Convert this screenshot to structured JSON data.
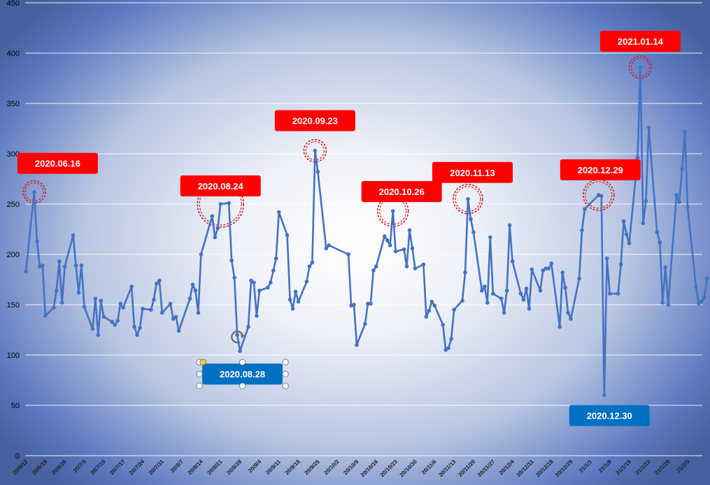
{
  "chart_data": {
    "type": "line",
    "ylim": [
      0,
      450
    ],
    "yticks": [
      0,
      50,
      100,
      150,
      200,
      250,
      300,
      350,
      400,
      450
    ],
    "grid": true,
    "line_color": "#4472C4",
    "xtick_labels": [
      "20/6/12",
      "20/6/19",
      "20/6/26",
      "20/7/3",
      "20/7/10",
      "20/7/17",
      "20/7/24",
      "20/7/31",
      "20/8/7",
      "20/8/14",
      "20/8/21",
      "20/8/28",
      "20/9/4",
      "20/9/11",
      "20/9/18",
      "20/9/25",
      "20/10/2",
      "20/10/9",
      "20/10/16",
      "20/10/23",
      "20/10/30",
      "20/11/6",
      "20/11/13",
      "20/11/20",
      "20/11/27",
      "20/12/4",
      "20/12/11",
      "20/12/18",
      "20/12/25",
      "21/1/1",
      "21/1/8",
      "21/1/15",
      "21/1/22",
      "21/1/29",
      "21/2/5"
    ],
    "series": [
      {
        "points": [
          [
            "2020-06-12",
            183
          ],
          [
            "2020-06-15",
            262
          ],
          [
            "2020-06-16",
            213
          ],
          [
            "2020-06-17",
            188
          ],
          [
            "2020-06-18",
            189
          ],
          [
            "2020-06-19",
            139
          ],
          [
            "2020-06-22",
            147
          ],
          [
            "2020-06-23",
            164
          ],
          [
            "2020-06-24",
            193
          ],
          [
            "2020-06-25",
            152
          ],
          [
            "2020-06-26",
            188
          ],
          [
            "2020-06-29",
            219
          ],
          [
            "2020-06-30",
            189
          ],
          [
            "2020-07-01",
            162
          ],
          [
            "2020-07-02",
            189
          ],
          [
            "2020-07-03",
            148
          ],
          [
            "2020-07-06",
            126
          ],
          [
            "2020-07-07",
            156
          ],
          [
            "2020-07-08",
            120
          ],
          [
            "2020-07-09",
            154
          ],
          [
            "2020-07-10",
            138
          ],
          [
            "2020-07-13",
            133
          ],
          [
            "2020-07-14",
            130
          ],
          [
            "2020-07-15",
            134
          ],
          [
            "2020-07-16",
            151
          ],
          [
            "2020-07-17",
            147
          ],
          [
            "2020-07-20",
            168
          ],
          [
            "2020-07-21",
            128
          ],
          [
            "2020-07-22",
            120
          ],
          [
            "2020-07-23",
            127
          ],
          [
            "2020-07-24",
            146
          ],
          [
            "2020-07-27",
            145
          ],
          [
            "2020-07-28",
            155
          ],
          [
            "2020-07-29",
            171
          ],
          [
            "2020-07-30",
            174
          ],
          [
            "2020-07-31",
            142
          ],
          [
            "2020-08-03",
            151
          ],
          [
            "2020-08-04",
            136
          ],
          [
            "2020-08-05",
            138
          ],
          [
            "2020-08-06",
            124
          ],
          [
            "2020-08-10",
            156
          ],
          [
            "2020-08-11",
            170
          ],
          [
            "2020-08-12",
            164
          ],
          [
            "2020-08-13",
            142
          ],
          [
            "2020-08-14",
            200
          ],
          [
            "2020-08-18",
            238
          ],
          [
            "2020-08-19",
            217
          ],
          [
            "2020-08-20",
            226
          ],
          [
            "2020-08-21",
            250
          ],
          [
            "2020-08-24",
            251
          ],
          [
            "2020-08-25",
            194
          ],
          [
            "2020-08-26",
            177
          ],
          [
            "2020-08-27",
            120
          ],
          [
            "2020-08-28",
            104
          ],
          [
            "2020-08-31",
            128
          ],
          [
            "2020-09-01",
            174
          ],
          [
            "2020-09-02",
            172
          ],
          [
            "2020-09-03",
            139
          ],
          [
            "2020-09-04",
            164
          ],
          [
            "2020-09-07",
            167
          ],
          [
            "2020-09-08",
            172
          ],
          [
            "2020-09-09",
            184
          ],
          [
            "2020-09-10",
            196
          ],
          [
            "2020-09-11",
            242
          ],
          [
            "2020-09-14",
            219
          ],
          [
            "2020-09-15",
            155
          ],
          [
            "2020-09-16",
            146
          ],
          [
            "2020-09-17",
            163
          ],
          [
            "2020-09-18",
            153
          ],
          [
            "2020-09-21",
            173
          ],
          [
            "2020-09-22",
            188
          ],
          [
            "2020-09-23",
            192
          ],
          [
            "2020-09-24",
            303
          ],
          [
            "2020-09-25",
            282
          ],
          [
            "2020-09-28",
            206
          ],
          [
            "2020-09-29",
            209
          ],
          [
            "2020-10-06",
            200
          ],
          [
            "2020-10-07",
            149
          ],
          [
            "2020-10-08",
            150
          ],
          [
            "2020-10-09",
            110
          ],
          [
            "2020-10-12",
            131
          ],
          [
            "2020-10-13",
            151
          ],
          [
            "2020-10-14",
            151
          ],
          [
            "2020-10-15",
            184
          ],
          [
            "2020-10-16",
            188
          ],
          [
            "2020-10-19",
            218
          ],
          [
            "2020-10-20",
            214
          ],
          [
            "2020-10-21",
            209
          ],
          [
            "2020-10-22",
            243
          ],
          [
            "2020-10-23",
            203
          ],
          [
            "2020-10-26",
            205
          ],
          [
            "2020-10-27",
            188
          ],
          [
            "2020-10-28",
            224
          ],
          [
            "2020-10-29",
            206
          ],
          [
            "2020-10-30",
            186
          ],
          [
            "2020-11-02",
            190
          ],
          [
            "2020-11-03",
            138
          ],
          [
            "2020-11-04",
            144
          ],
          [
            "2020-11-05",
            153
          ],
          [
            "2020-11-06",
            149
          ],
          [
            "2020-11-09",
            130
          ],
          [
            "2020-11-10",
            105
          ],
          [
            "2020-11-11",
            107
          ],
          [
            "2020-11-12",
            116
          ],
          [
            "2020-11-13",
            145
          ],
          [
            "2020-11-16",
            154
          ],
          [
            "2020-11-17",
            182
          ],
          [
            "2020-11-18",
            255
          ],
          [
            "2020-11-19",
            235
          ],
          [
            "2020-11-20",
            222
          ],
          [
            "2020-11-23",
            164
          ],
          [
            "2020-11-24",
            168
          ],
          [
            "2020-11-25",
            152
          ],
          [
            "2020-11-26",
            217
          ],
          [
            "2020-11-27",
            161
          ],
          [
            "2020-11-30",
            156
          ],
          [
            "2020-12-01",
            142
          ],
          [
            "2020-12-02",
            164
          ],
          [
            "2020-12-03",
            229
          ],
          [
            "2020-12-04",
            193
          ],
          [
            "2020-12-07",
            161
          ],
          [
            "2020-12-08",
            155
          ],
          [
            "2020-12-09",
            166
          ],
          [
            "2020-12-10",
            146
          ],
          [
            "2020-12-11",
            185
          ],
          [
            "2020-12-14",
            164
          ],
          [
            "2020-12-15",
            184
          ],
          [
            "2020-12-16",
            186
          ],
          [
            "2020-12-17",
            186
          ],
          [
            "2020-12-18",
            191
          ],
          [
            "2020-12-21",
            128
          ],
          [
            "2020-12-22",
            182
          ],
          [
            "2020-12-23",
            167
          ],
          [
            "2020-12-24",
            142
          ],
          [
            "2020-12-25",
            136
          ],
          [
            "2020-12-28",
            176
          ],
          [
            "2020-12-29",
            224
          ],
          [
            "2020-12-30",
            245
          ],
          [
            "2021-01-04",
            259
          ],
          [
            "2021-01-05",
            258
          ],
          [
            "2021-01-06",
            60
          ],
          [
            "2021-01-07",
            196
          ],
          [
            "2021-01-08",
            161
          ],
          [
            "2021-01-11",
            161
          ],
          [
            "2021-01-12",
            190
          ],
          [
            "2021-01-13",
            233
          ],
          [
            "2021-01-14",
            220
          ],
          [
            "2021-01-15",
            211
          ],
          [
            "2021-01-18",
            296
          ],
          [
            "2021-01-19",
            386
          ],
          [
            "2021-01-20",
            231
          ],
          [
            "2021-01-21",
            253
          ],
          [
            "2021-01-22",
            326
          ],
          [
            "2021-01-25",
            222
          ],
          [
            "2021-01-26",
            212
          ],
          [
            "2021-01-27",
            152
          ],
          [
            "2021-01-28",
            187
          ],
          [
            "2021-01-29",
            150
          ],
          [
            "2021-02-01",
            259
          ],
          [
            "2021-02-02",
            252
          ],
          [
            "2021-02-03",
            285
          ],
          [
            "2021-02-04",
            322
          ],
          [
            "2021-02-05",
            247
          ],
          [
            "2021-02-08",
            168
          ],
          [
            "2021-02-09",
            151
          ],
          [
            "2021-02-10",
            153
          ],
          [
            "2021-02-11",
            157
          ],
          [
            "2021-02-12",
            176
          ]
        ]
      }
    ],
    "annotations": [
      {
        "label": "2020.06.16",
        "date": "2020-06-15",
        "value": 262,
        "style": "red"
      },
      {
        "label": "2020.08.24",
        "date": "2020-08-21",
        "value": 250,
        "style": "red"
      },
      {
        "label": "2020.09.23",
        "date": "2020-09-24",
        "value": 303,
        "style": "red"
      },
      {
        "label": "2020.10.26",
        "date": "2020-10-22",
        "value": 243,
        "style": "red"
      },
      {
        "label": "2020.11.13",
        "date": "2020-11-18",
        "value": 255,
        "style": "red"
      },
      {
        "label": "2020.12.29",
        "date": "2021-01-04",
        "value": 259,
        "style": "red"
      },
      {
        "label": "2021.01.14",
        "date": "2021-01-19",
        "value": 386,
        "style": "red"
      },
      {
        "label": "2020.08.28",
        "date": "2020-08-27",
        "value": 120,
        "style": "blue-selected"
      },
      {
        "label": "2020.12.30",
        "date": "2021-01-06",
        "value": 60,
        "style": "blue"
      }
    ],
    "colors": {
      "red_callout": "#FF0000",
      "blue_callout": "#0070C0",
      "red_dash": "#D81E1E"
    }
  }
}
